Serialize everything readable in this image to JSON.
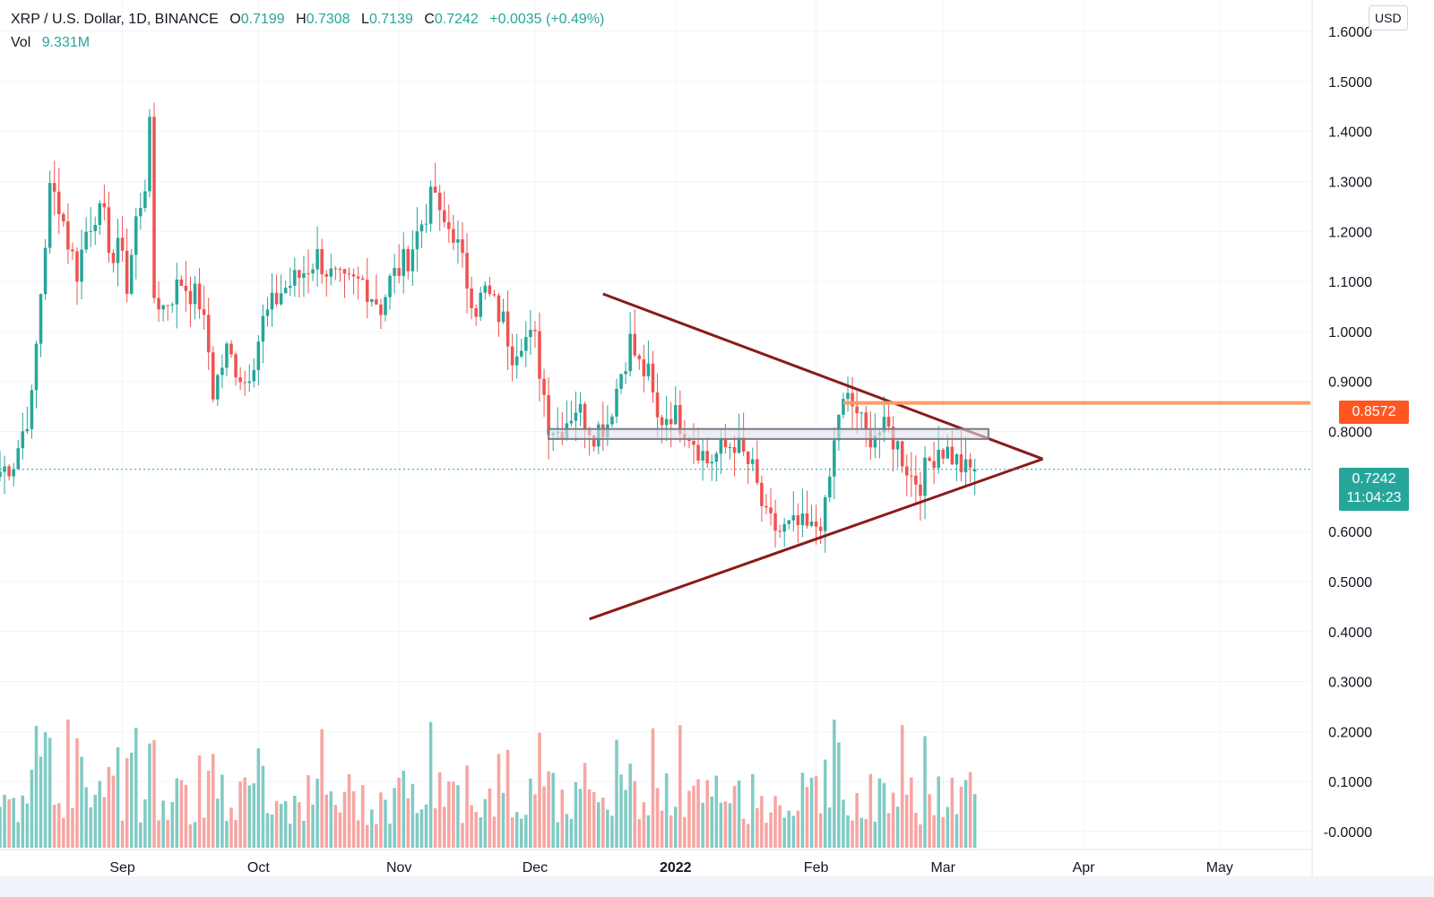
{
  "header": {
    "symbol": "XRP / U.S. Dollar, 1D, BINANCE",
    "open_label": "O",
    "open": "0.7199",
    "high_label": "H",
    "high": "0.7308",
    "low_label": "L",
    "low": "0.7139",
    "close_label": "C",
    "close": "0.7242",
    "change": "+0.0035 (+0.49%)",
    "vol_label": "Vol",
    "vol": "9.331M"
  },
  "currency_button": "USD",
  "price_tags": {
    "resistance": "0.8572",
    "last": "0.7242",
    "countdown": "11:04:23"
  },
  "colors": {
    "up": "#26a69a",
    "down": "#ef5350",
    "vol_up": "#80cbc4",
    "vol_down": "#f7a5a2",
    "triangle": "#8b1a1a",
    "resistance": "#ff9b66",
    "zone_fill": "#e0e3eb",
    "zone_border": "#787b86",
    "grid": "#f0f3fa",
    "text": "#131722"
  },
  "chart_data": {
    "type": "candlestick",
    "title": "XRP / U.S. Dollar, 1D, BINANCE",
    "y_axis": {
      "ticks": [
        "1.6000",
        "1.5000",
        "1.4000",
        "1.3000",
        "1.2000",
        "1.1000",
        "1.0000",
        "0.9000",
        "0.8000",
        "0.6000",
        "0.5000",
        "0.4000",
        "0.3000",
        "0.2000",
        "0.1000",
        "-0.0000"
      ],
      "tick_values": [
        1.6,
        1.5,
        1.4,
        1.3,
        1.2,
        1.1,
        1.0,
        0.9,
        0.8,
        0.6,
        0.5,
        0.4,
        0.3,
        0.2,
        0.1,
        0.0
      ],
      "range": [
        -0.015,
        1.61
      ]
    },
    "x_axis": {
      "labels": [
        "Sep",
        "Oct",
        "Nov",
        "Dec",
        "2022",
        "Feb",
        "Mar",
        "Apr",
        "May"
      ],
      "dates": [
        "2021-09-01",
        "2021-10-01",
        "2021-11-01",
        "2021-12-01",
        "2022-01-01",
        "2022-02-01",
        "2022-03-01",
        "2022-04-01",
        "2022-05-01"
      ],
      "range": [
        "2021-08-05",
        "2022-05-21"
      ]
    },
    "ohlc_anchor_closes": [
      [
        "2021-08-05",
        0.72
      ],
      [
        "2021-08-08",
        0.74
      ],
      [
        "2021-08-10",
        0.8
      ],
      [
        "2021-08-12",
        0.86
      ],
      [
        "2021-08-14",
        1.08
      ],
      [
        "2021-08-16",
        1.28
      ],
      [
        "2021-08-18",
        1.26
      ],
      [
        "2021-08-20",
        1.18
      ],
      [
        "2021-08-22",
        1.12
      ],
      [
        "2021-08-24",
        1.2
      ],
      [
        "2021-08-26",
        1.24
      ],
      [
        "2021-08-28",
        1.22
      ],
      [
        "2021-08-30",
        1.14
      ],
      [
        "2021-09-01",
        1.18
      ],
      [
        "2021-09-02",
        1.08
      ],
      [
        "2021-09-04",
        1.22
      ],
      [
        "2021-09-06",
        1.3
      ],
      [
        "2021-09-07",
        1.4
      ],
      [
        "2021-09-08",
        1.07
      ],
      [
        "2021-09-10",
        1.05
      ],
      [
        "2021-09-14",
        1.1
      ],
      [
        "2021-09-18",
        1.06
      ],
      [
        "2021-09-20",
        0.96
      ],
      [
        "2021-09-21",
        0.88
      ],
      [
        "2021-09-24",
        0.96
      ],
      [
        "2021-09-28",
        0.9
      ],
      [
        "2021-09-30",
        0.95
      ],
      [
        "2021-10-02",
        1.02
      ],
      [
        "2021-10-06",
        1.08
      ],
      [
        "2021-10-10",
        1.11
      ],
      [
        "2021-10-14",
        1.15
      ],
      [
        "2021-10-17",
        1.11
      ],
      [
        "2021-10-20",
        1.09
      ],
      [
        "2021-10-24",
        1.1
      ],
      [
        "2021-10-28",
        1.05
      ],
      [
        "2021-10-30",
        1.1
      ],
      [
        "2021-11-03",
        1.15
      ],
      [
        "2021-11-07",
        1.24
      ],
      [
        "2021-11-09",
        1.28
      ],
      [
        "2021-11-10",
        1.22
      ],
      [
        "2021-11-13",
        1.2
      ],
      [
        "2021-11-16",
        1.1
      ],
      [
        "2021-11-18",
        1.05
      ],
      [
        "2021-11-20",
        1.08
      ],
      [
        "2021-11-24",
        1.02
      ],
      [
        "2021-11-26",
        0.96
      ],
      [
        "2021-11-28",
        0.99
      ],
      [
        "2021-12-01",
        0.98
      ],
      [
        "2021-12-04",
        0.82
      ],
      [
        "2021-12-06",
        0.8
      ],
      [
        "2021-12-10",
        0.85
      ],
      [
        "2021-12-14",
        0.8
      ],
      [
        "2021-12-17",
        0.82
      ],
      [
        "2021-12-20",
        0.92
      ],
      [
        "2021-12-22",
        0.98
      ],
      [
        "2021-12-24",
        0.93
      ],
      [
        "2021-12-26",
        0.91
      ],
      [
        "2021-12-28",
        0.82
      ],
      [
        "2021-12-31",
        0.84
      ],
      [
        "2022-01-04",
        0.8
      ],
      [
        "2022-01-08",
        0.74
      ],
      [
        "2022-01-11",
        0.76
      ],
      [
        "2022-01-14",
        0.78
      ],
      [
        "2022-01-18",
        0.72
      ],
      [
        "2022-01-21",
        0.62
      ],
      [
        "2022-01-24",
        0.6
      ],
      [
        "2022-01-28",
        0.61
      ],
      [
        "2022-01-31",
        0.6
      ],
      [
        "2022-02-03",
        0.64
      ],
      [
        "2022-02-06",
        0.84
      ],
      [
        "2022-02-08",
        0.86
      ],
      [
        "2022-02-10",
        0.84
      ],
      [
        "2022-02-12",
        0.79
      ],
      [
        "2022-02-14",
        0.8
      ],
      [
        "2022-02-17",
        0.8
      ],
      [
        "2022-02-19",
        0.77
      ],
      [
        "2022-02-22",
        0.71
      ],
      [
        "2022-02-24",
        0.7
      ],
      [
        "2022-02-26",
        0.74
      ],
      [
        "2022-02-28",
        0.77
      ],
      [
        "2022-03-02",
        0.76
      ],
      [
        "2022-03-04",
        0.74
      ],
      [
        "2022-03-06",
        0.72
      ],
      [
        "2022-03-08",
        0.7242
      ]
    ],
    "volume_note": "daily volume bars, green/red by candle direction",
    "annotations": [
      {
        "type": "trendline",
        "from": [
          "2021-12-16",
          1.075
        ],
        "to": [
          "2022-03-23",
          0.745
        ]
      },
      {
        "type": "trendline",
        "from": [
          "2021-12-13",
          0.425
        ],
        "to": [
          "2022-03-23",
          0.745
        ]
      },
      {
        "type": "horizontal_ray",
        "from": "2022-02-07",
        "value": 0.8572
      },
      {
        "type": "zone",
        "from": "2021-12-04",
        "to": "2022-03-11",
        "low": 0.785,
        "high": 0.805
      },
      {
        "type": "horizontal_dotted",
        "value": 0.7242
      }
    ]
  }
}
